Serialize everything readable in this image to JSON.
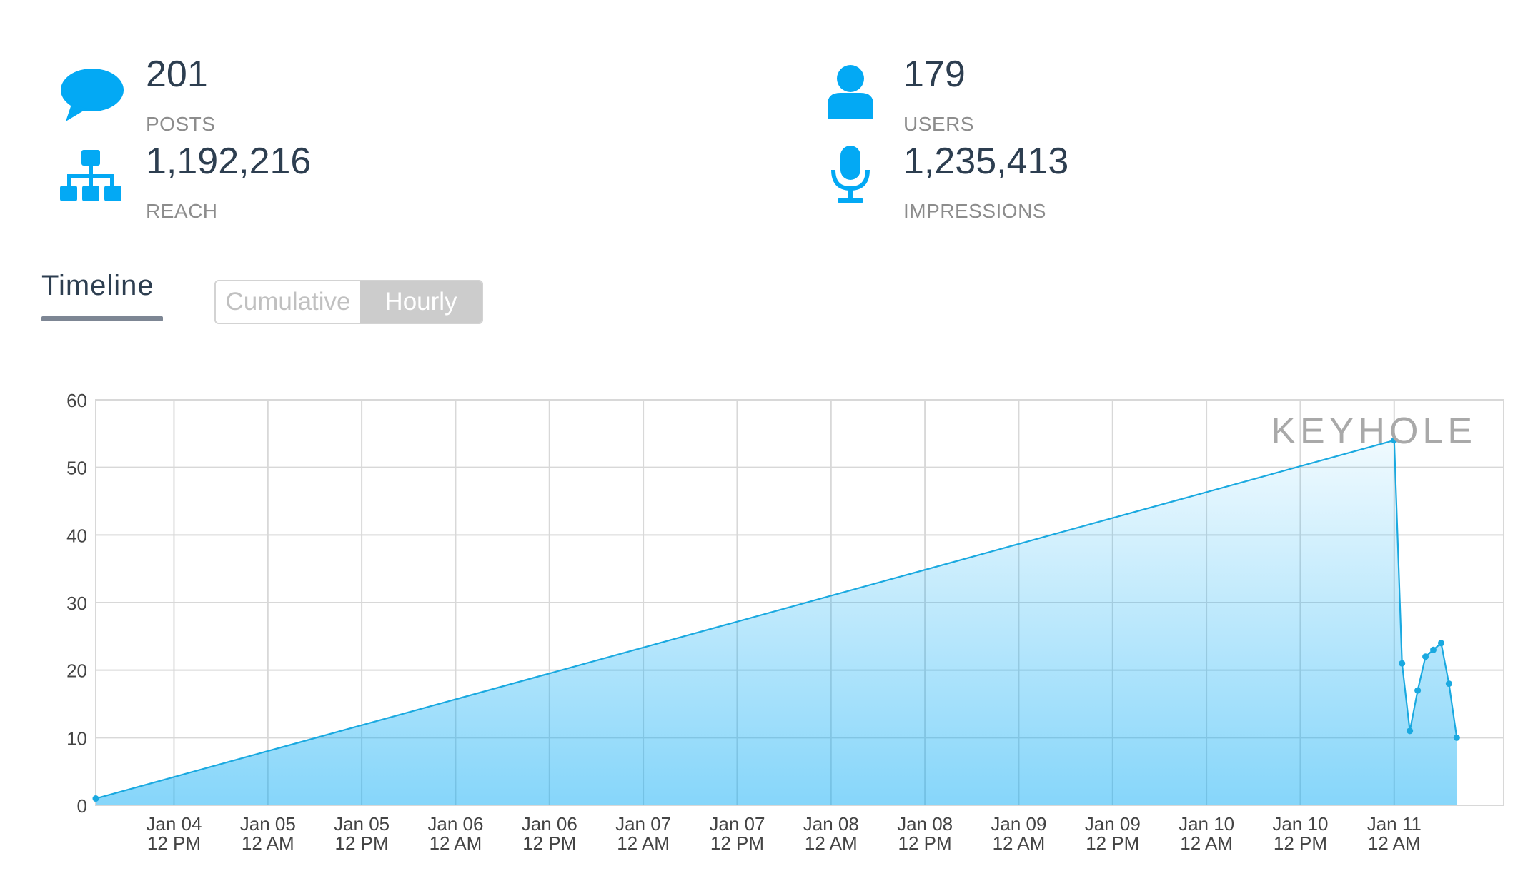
{
  "stats": {
    "posts": {
      "value": "201",
      "label": "POSTS",
      "icon": "speech-bubble-icon"
    },
    "users": {
      "value": "179",
      "label": "USERS",
      "icon": "user-icon"
    },
    "reach": {
      "value": "1,192,216",
      "label": "REACH",
      "icon": "sitemap-icon"
    },
    "impressions": {
      "value": "1,235,413",
      "label": "IMPRESSIONS",
      "icon": "microphone-icon"
    }
  },
  "timeline": {
    "tab_label": "Timeline",
    "toggle": {
      "cumulative_label": "Cumulative",
      "hourly_label": "Hourly",
      "selected": "Hourly"
    }
  },
  "watermark": "KEYHOLE",
  "colors": {
    "accent": "#03a9f4",
    "line": "#1aa9e0",
    "text_dark": "#2d3e50",
    "text_muted": "#8c8c8c",
    "grid": "#d8d8d8"
  },
  "chart_data": {
    "type": "area",
    "title": "",
    "xlabel": "",
    "ylabel": "",
    "ylim": [
      0,
      60
    ],
    "yticks": [
      0,
      10,
      20,
      30,
      40,
      50,
      60
    ],
    "xlim": [
      -10,
      170
    ],
    "x_unit": "hours",
    "x_ticks": [
      {
        "at": 0,
        "line1": "Jan 04",
        "line2": "12 PM"
      },
      {
        "at": 12,
        "line1": "Jan 05",
        "line2": "12 AM"
      },
      {
        "at": 24,
        "line1": "Jan 05",
        "line2": "12 PM"
      },
      {
        "at": 36,
        "line1": "Jan 06",
        "line2": "12 AM"
      },
      {
        "at": 48,
        "line1": "Jan 06",
        "line2": "12 PM"
      },
      {
        "at": 60,
        "line1": "Jan 07",
        "line2": "12 AM"
      },
      {
        "at": 72,
        "line1": "Jan 07",
        "line2": "12 PM"
      },
      {
        "at": 84,
        "line1": "Jan 08",
        "line2": "12 AM"
      },
      {
        "at": 96,
        "line1": "Jan 08",
        "line2": "12 PM"
      },
      {
        "at": 108,
        "line1": "Jan 09",
        "line2": "12 AM"
      },
      {
        "at": 120,
        "line1": "Jan 09",
        "line2": "12 PM"
      },
      {
        "at": 132,
        "line1": "Jan 10",
        "line2": "12 AM"
      },
      {
        "at": 144,
        "line1": "Jan 10",
        "line2": "12 PM"
      },
      {
        "at": 156,
        "line1": "Jan 11",
        "line2": "12 AM"
      }
    ],
    "grid": true,
    "series": [
      {
        "x": [
          -10,
          156,
          157,
          158,
          159,
          160,
          161,
          162,
          163,
          164
        ],
        "y": [
          1,
          54,
          21,
          11,
          17,
          22,
          23,
          24,
          18,
          10
        ]
      }
    ]
  }
}
